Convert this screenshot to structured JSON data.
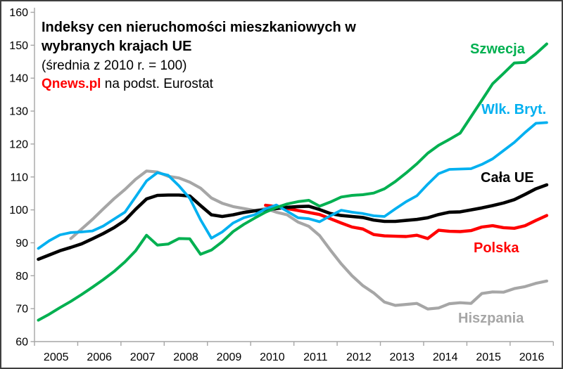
{
  "title": {
    "line1": "Indeksy cen nieruchomości mieszkaniowych w",
    "line2": "wybranych krajach UE",
    "subtitle": "(średnia z 2010 r. = 100)",
    "source_brand": "Qnews.pl",
    "source_rest": " na podst. Eurostat"
  },
  "chart_data": {
    "type": "line",
    "frequency": "quarterly",
    "x_start": "2005Q1",
    "x_end": "2016Q4",
    "x_tick_labels": [
      "2005",
      "2006",
      "2007",
      "2008",
      "2009",
      "2010",
      "2011",
      "2012",
      "2013",
      "2014",
      "2015",
      "2016"
    ],
    "y_ticks": [
      60,
      70,
      80,
      90,
      100,
      110,
      120,
      130,
      140,
      150,
      160
    ],
    "ylim": [
      60,
      160
    ],
    "grid": false,
    "legend_position": "inline-labels",
    "axis_color": "#a6a6a6",
    "draw_order": [
      4,
      3,
      2,
      1,
      0
    ],
    "series": [
      {
        "name": "Szwecja",
        "color": "#00B050",
        "stroke_width": 4.0,
        "values": [
          66.5,
          68.3,
          70.3,
          72.2,
          74.3,
          76.5,
          78.8,
          81.3,
          84.2,
          87.6,
          92.3,
          89.3,
          89.6,
          91.3,
          91.2,
          86.5,
          87.8,
          90.3,
          93.4,
          95.6,
          97.5,
          99.3,
          100.7,
          101.8,
          102.5,
          102.9,
          101.1,
          102.4,
          103.9,
          104.4,
          104.6,
          105.1,
          106.4,
          108.6,
          111.2,
          114.0,
          117.2,
          119.6,
          121.4,
          123.3,
          128.3,
          133.3,
          138.3,
          141.4,
          144.6,
          144.8,
          147.4,
          150.4
        ]
      },
      {
        "name": "Wlk. Bryt.",
        "color": "#00B0F0",
        "stroke_width": 3.8,
        "values": [
          88.3,
          90.6,
          92.4,
          93.1,
          93.3,
          93.6,
          95.1,
          97.2,
          99.3,
          104.0,
          108.8,
          111.3,
          110.5,
          107.3,
          103.5,
          97.0,
          91.4,
          93.3,
          96.0,
          97.6,
          98.5,
          100.3,
          101.5,
          99.6,
          97.6,
          97.3,
          96.4,
          98.2,
          99.9,
          99.3,
          98.9,
          98.2,
          98.0,
          100.3,
          102.5,
          104.3,
          107.8,
          111.0,
          112.3,
          112.4,
          112.5,
          113.8,
          115.5,
          118.0,
          120.5,
          123.5,
          126.3,
          126.5
        ]
      },
      {
        "name": "Cała UE",
        "color": "#000000",
        "stroke_width": 4.6,
        "values": [
          85.0,
          86.3,
          87.6,
          88.6,
          89.7,
          91.2,
          92.8,
          94.6,
          96.8,
          100.2,
          103.3,
          104.4,
          104.5,
          104.5,
          104.2,
          101.3,
          98.5,
          98.0,
          98.5,
          99.2,
          99.7,
          100.0,
          100.4,
          100.8,
          101.0,
          101.1,
          100.1,
          98.9,
          98.3,
          98.0,
          97.7,
          96.9,
          96.5,
          96.5,
          96.8,
          97.1,
          97.6,
          98.6,
          99.3,
          99.4,
          100.0,
          100.6,
          101.3,
          102.1,
          103.1,
          104.7,
          106.4,
          107.6
        ]
      },
      {
        "name": "Polska",
        "color": "#FF0000",
        "stroke_width": 4.4,
        "values": [
          null,
          null,
          null,
          null,
          null,
          null,
          null,
          null,
          null,
          null,
          null,
          null,
          null,
          null,
          null,
          null,
          null,
          null,
          null,
          null,
          null,
          101.4,
          101.0,
          100.4,
          99.8,
          99.2,
          98.6,
          97.3,
          96.0,
          94.8,
          94.2,
          92.5,
          92.1,
          92.0,
          91.9,
          92.3,
          91.3,
          93.8,
          93.5,
          93.4,
          93.7,
          94.8,
          95.2,
          94.6,
          94.4,
          95.2,
          96.8,
          98.3
        ]
      },
      {
        "name": "Hiszpania",
        "color": "#A6A6A6",
        "stroke_width": 4.2,
        "values": [
          null,
          null,
          null,
          91.3,
          94.2,
          97.1,
          100.3,
          103.4,
          106.2,
          109.3,
          111.8,
          111.5,
          110.2,
          109.7,
          108.4,
          106.6,
          103.6,
          102.0,
          101.0,
          100.4,
          99.8,
          100.4,
          99.3,
          98.5,
          96.3,
          95.0,
          92.2,
          87.8,
          83.6,
          80.0,
          77.0,
          74.8,
          72.0,
          71.0,
          71.3,
          71.6,
          69.9,
          70.2,
          71.5,
          71.8,
          71.6,
          74.6,
          75.1,
          75.0,
          76.1,
          76.7,
          77.7,
          78.4
        ]
      }
    ]
  }
}
